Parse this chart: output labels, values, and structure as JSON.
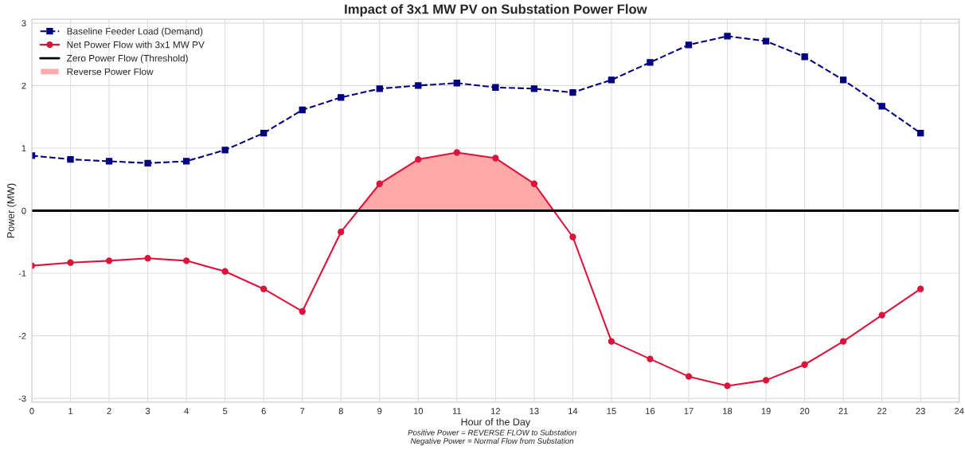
{
  "chart_data": {
    "type": "line",
    "title": "Impact of 3x1 MW PV on Substation Power Flow",
    "xlabel": "Hour of the Day",
    "ylabel": "Power (MW)",
    "x": [
      0,
      1,
      2,
      3,
      4,
      5,
      6,
      7,
      8,
      9,
      10,
      11,
      12,
      13,
      14,
      15,
      16,
      17,
      18,
      19,
      20,
      21,
      22,
      23
    ],
    "series": [
      {
        "name": "Baseline Feeder Load (Demand)",
        "color": "#000080",
        "marker": "square",
        "line_style": "dashed",
        "values": [
          0.88,
          0.82,
          0.79,
          0.76,
          0.79,
          0.97,
          1.24,
          1.61,
          1.81,
          1.95,
          2.0,
          2.04,
          1.97,
          1.95,
          1.89,
          2.09,
          2.37,
          2.65,
          2.79,
          2.71,
          2.46,
          2.09,
          1.67,
          1.24
        ]
      },
      {
        "name": "Net Power Flow with 3x1 MW PV",
        "color": "#dc143c",
        "marker": "circle",
        "line_style": "solid",
        "values": [
          -0.88,
          -0.83,
          -0.8,
          -0.76,
          -0.8,
          -0.97,
          -1.25,
          -1.61,
          -0.34,
          0.43,
          0.82,
          0.93,
          0.84,
          0.43,
          -0.42,
          -2.09,
          -2.37,
          -2.65,
          -2.8,
          -2.71,
          -2.46,
          -2.09,
          -1.67,
          -1.25
        ]
      },
      {
        "name": "Reverse Power Flow",
        "type": "area",
        "color": "#ffa8a8",
        "x": [
          8.44,
          9,
          10,
          11,
          12,
          13,
          13.51
        ],
        "values": [
          0,
          0.43,
          0.82,
          0.93,
          0.84,
          0.43,
          0
        ]
      }
    ],
    "ref_lines": [
      {
        "axis": "y",
        "value": 0,
        "label": "Zero Power Flow (Threshold)",
        "color": "#000000",
        "line_style": "solid"
      }
    ],
    "xlim": [
      0,
      24
    ],
    "xticks": [
      0,
      1,
      2,
      3,
      4,
      5,
      6,
      7,
      8,
      9,
      10,
      11,
      12,
      13,
      14,
      15,
      16,
      17,
      18,
      19,
      20,
      21,
      22,
      23,
      24
    ],
    "ylim": [
      -3.06,
      3.06
    ],
    "yticks": [
      -3,
      -2,
      -1,
      0,
      1,
      2,
      3
    ],
    "grid": true,
    "legend": "top left",
    "annotations": [
      "Positive Power = REVERSE FLOW to Substation\nNegative Power = Normal Flow from Substation"
    ]
  }
}
